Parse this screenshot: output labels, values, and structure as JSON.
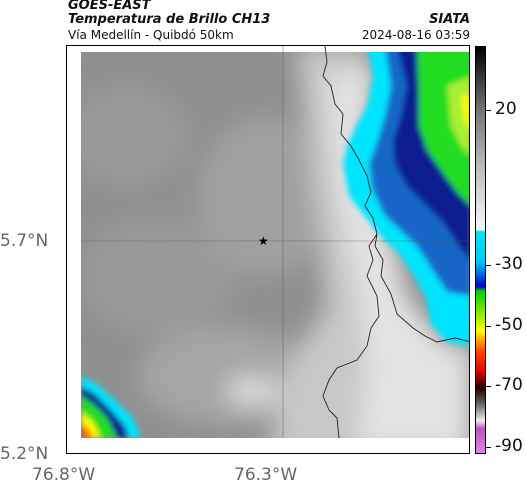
{
  "header": {
    "satellite": "GOES-EAST",
    "product": "Temperatura de Brillo CH13",
    "region": "Vía Medellín - Quibdó 50km",
    "agency": "SIATA",
    "datetime": "2024-08-16 03:59"
  },
  "map": {
    "lat_labels": [
      "5.7°N",
      "5.2°N"
    ],
    "lon_labels": [
      "76.8°W",
      "76.3°W"
    ],
    "marker": {
      "name": "location-marker",
      "glyph": "★"
    }
  },
  "colorbar": {
    "labels": [
      "20",
      "-30",
      "-50",
      "-70",
      "-90"
    ],
    "stops": [
      {
        "value": 40,
        "color": "#000000"
      },
      {
        "value": 20,
        "color": "#bdbdbd"
      },
      {
        "value": -20,
        "color": "#ffffff"
      },
      {
        "value": -22,
        "color": "#00e5ff"
      },
      {
        "value": -35,
        "color": "#0000cc"
      },
      {
        "value": -40,
        "color": "#00cc00"
      },
      {
        "value": -50,
        "color": "#ffff00"
      },
      {
        "value": -55,
        "color": "#ff6600"
      },
      {
        "value": -62,
        "color": "#ff0000"
      },
      {
        "value": -70,
        "color": "#000000"
      },
      {
        "value": -78,
        "color": "#ffffff"
      },
      {
        "value": -85,
        "color": "#bb55bb"
      },
      {
        "value": -90,
        "color": "#cc66cc"
      }
    ]
  },
  "colors": {
    "gray_dark": "#8f8f8f",
    "gray_mid": "#b5b5b5",
    "gray_light": "#e6e6e6",
    "cyan": "#00e5ff",
    "blue_deep": "#0b1f8f",
    "green": "#22dd22",
    "yellow": "#ffff00"
  }
}
